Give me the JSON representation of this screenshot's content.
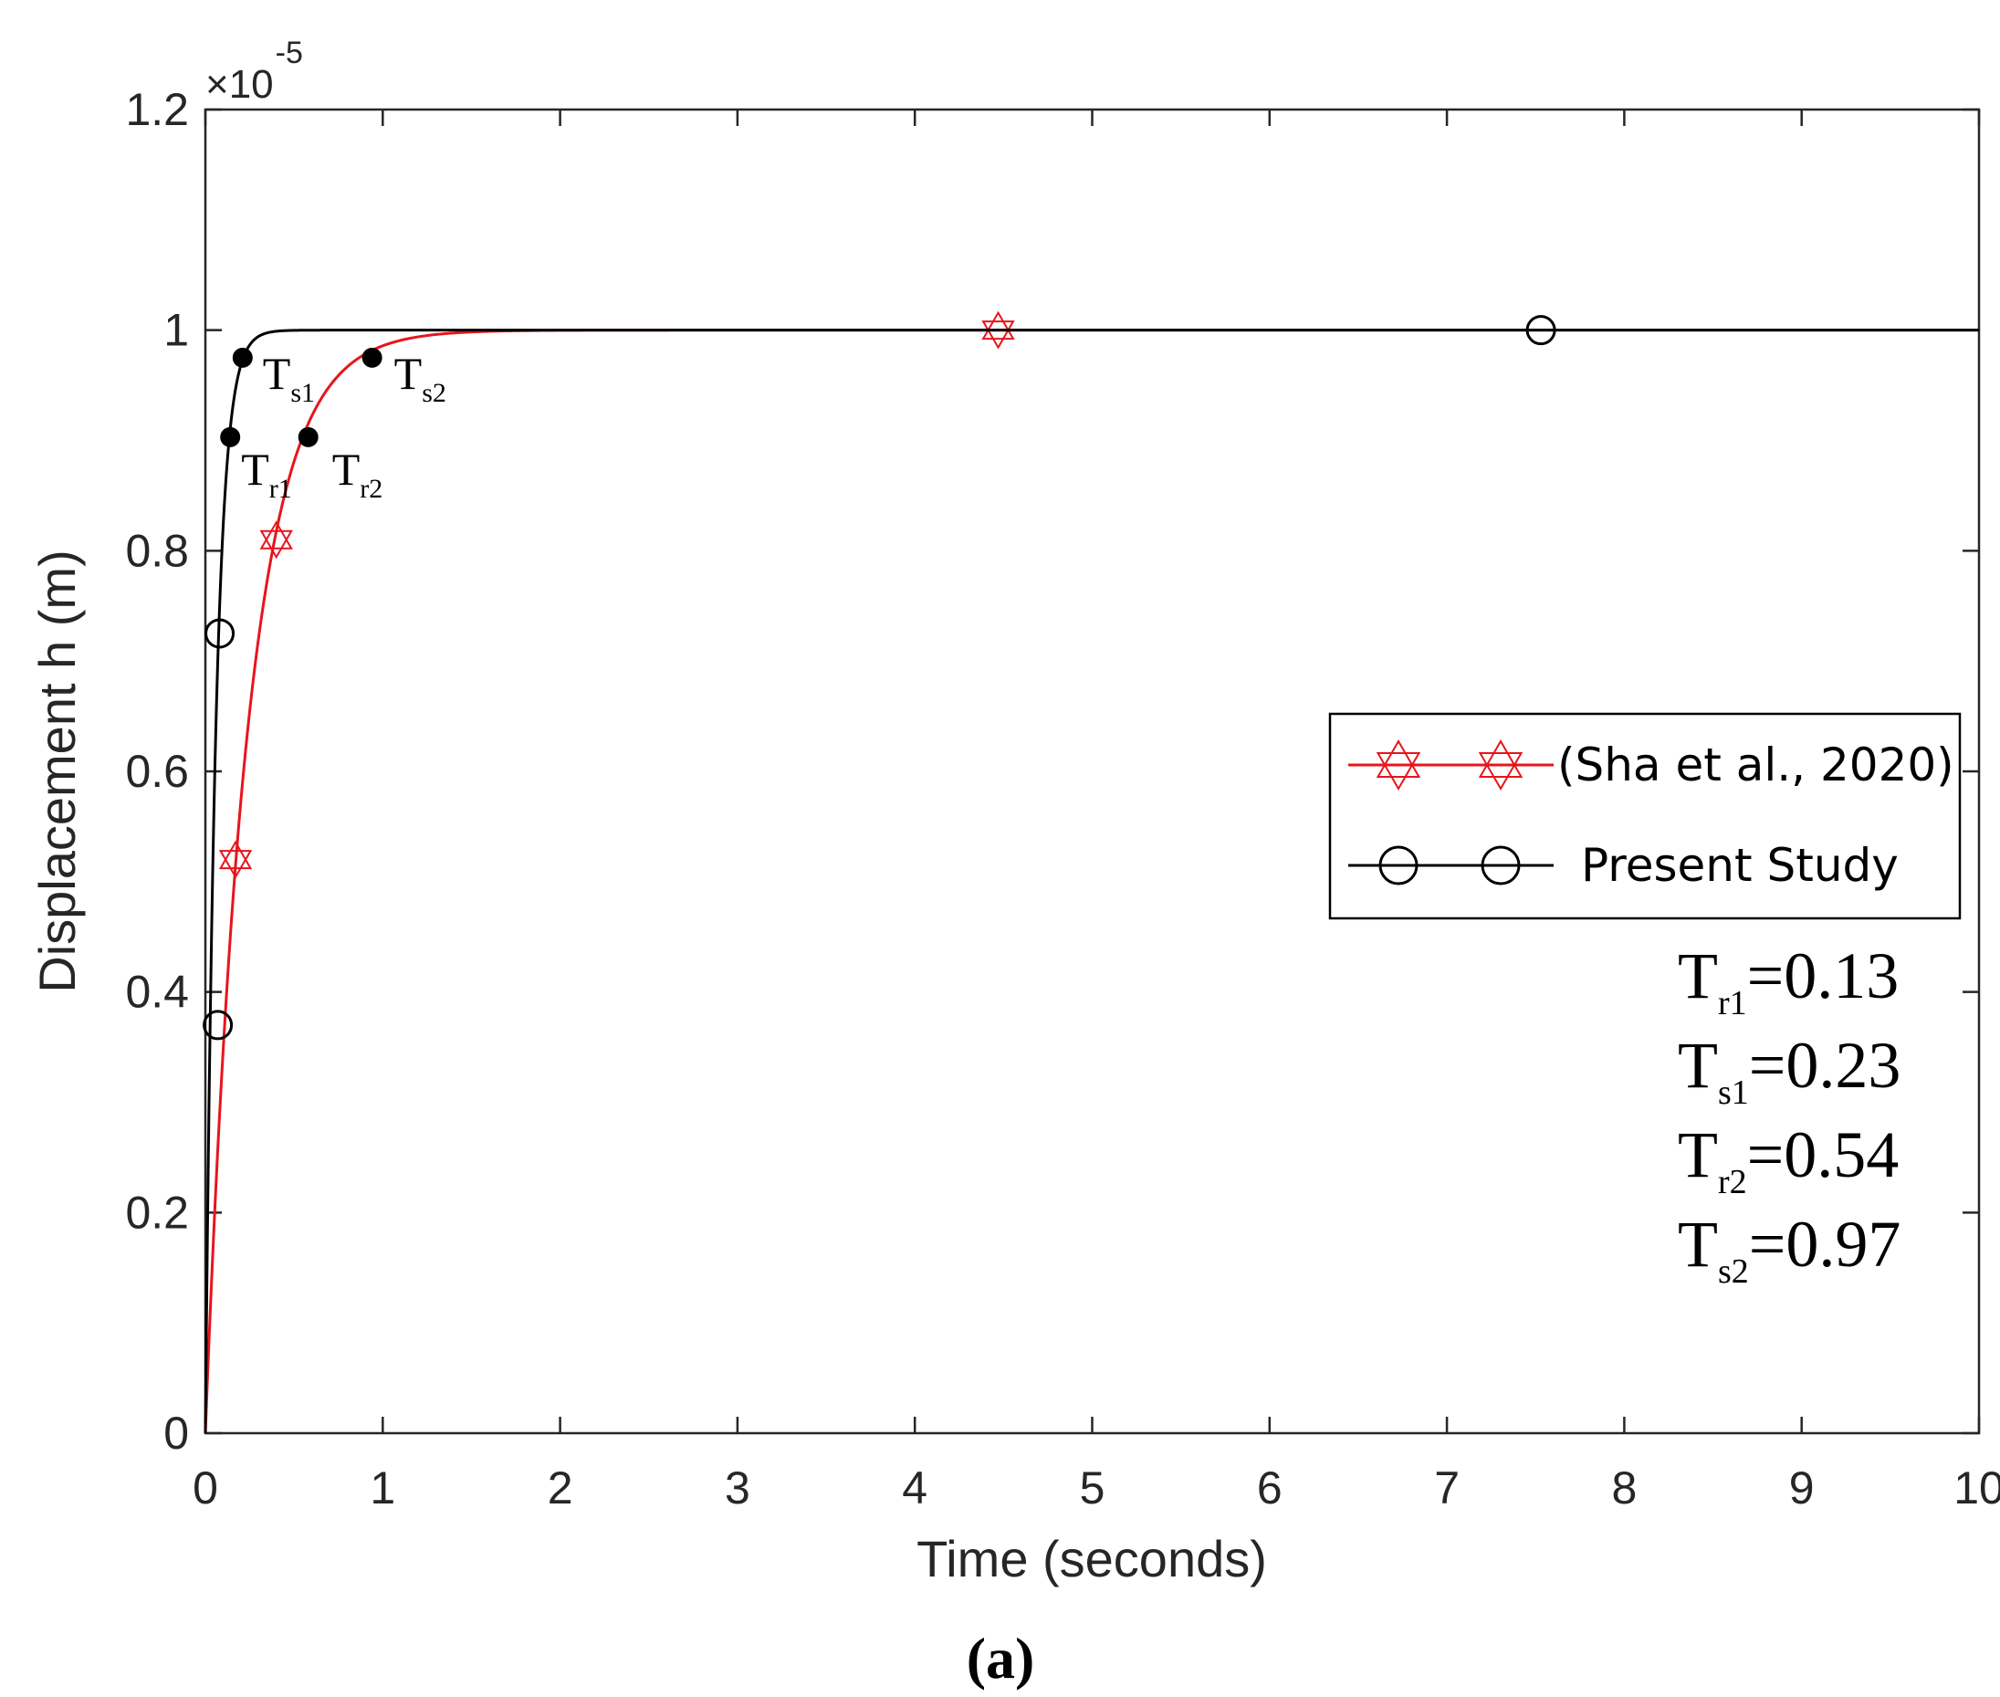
{
  "chart_data": {
    "type": "line",
    "title": "",
    "xlabel": "Time (seconds)",
    "ylabel": "Displacement h (m)",
    "exponent_label": "×10",
    "exponent_power": "-5",
    "xlim": [
      0,
      10
    ],
    "ylim": [
      0,
      1.2
    ],
    "xticks": [
      "0",
      "1",
      "2",
      "3",
      "4",
      "5",
      "6",
      "7",
      "8",
      "9",
      "10"
    ],
    "yticks": [
      "0",
      "0.2",
      "0.4",
      "0.6",
      "0.8",
      "1",
      "1.2"
    ],
    "grid": false,
    "legend_position": "middle-right",
    "series": [
      {
        "name": "(Sha et al., 2020)",
        "color": "#e8141c",
        "marker": "hexagram",
        "time_constant": 0.235,
        "x": [
          0,
          0.05,
          0.1,
          0.15,
          0.2,
          0.3,
          0.4,
          0.5,
          0.6,
          0.8,
          1.0,
          1.2,
          1.5,
          2.0,
          3.0,
          4.0,
          5.0,
          6.0,
          7.0,
          8.0,
          9.0,
          10.0
        ],
        "y": [
          0,
          0.192,
          0.347,
          0.472,
          0.573,
          0.721,
          0.818,
          0.881,
          0.922,
          0.967,
          0.986,
          0.994,
          0.998,
          1.0,
          1.0,
          1.0,
          1.0,
          1.0,
          1.0,
          1.0,
          1.0,
          1.0
        ],
        "markers": [
          {
            "x": 0.17,
            "y": 0.52
          },
          {
            "x": 0.4,
            "y": 0.81
          },
          {
            "x": 4.47,
            "y": 1.0
          }
        ]
      },
      {
        "name": "Present Study",
        "color": "#000000",
        "marker": "circle",
        "time_constant": 0.058,
        "x": [
          0,
          0.02,
          0.04,
          0.06,
          0.08,
          0.1,
          0.13,
          0.16,
          0.2,
          0.25,
          0.3,
          0.4,
          0.5,
          1.0,
          2.0,
          4.0,
          6.0,
          8.0,
          10.0
        ],
        "y": [
          0,
          0.292,
          0.499,
          0.645,
          0.748,
          0.822,
          0.894,
          0.936,
          0.968,
          0.987,
          0.994,
          0.999,
          1.0,
          1.0,
          1.0,
          1.0,
          1.0,
          1.0,
          1.0
        ],
        "markers": [
          {
            "x": 0.07,
            "y": 0.37
          },
          {
            "x": 0.08,
            "y": 0.725
          },
          {
            "x": 7.53,
            "y": 1.0
          }
        ]
      }
    ],
    "annotations": [
      {
        "id": "tr1",
        "base": "T",
        "sub": "r1",
        "x": 0.14,
        "y": 0.903
      },
      {
        "id": "ts1",
        "base": "T",
        "sub": "s1",
        "x": 0.21,
        "y": 0.975
      },
      {
        "id": "tr2",
        "base": "T",
        "sub": "r2",
        "x": 0.58,
        "y": 0.903
      },
      {
        "id": "ts2",
        "base": "T",
        "sub": "s2",
        "x": 0.94,
        "y": 0.975
      }
    ],
    "summary": [
      {
        "base": "T",
        "sub": "r1",
        "value": "=0.13"
      },
      {
        "base": "T",
        "sub": "s1",
        "value": "=0.23"
      },
      {
        "base": "T",
        "sub": "r2",
        "value": "=0.54"
      },
      {
        "base": "T",
        "sub": "s2",
        "value": "=0.97"
      }
    ],
    "caption": "(a)"
  }
}
